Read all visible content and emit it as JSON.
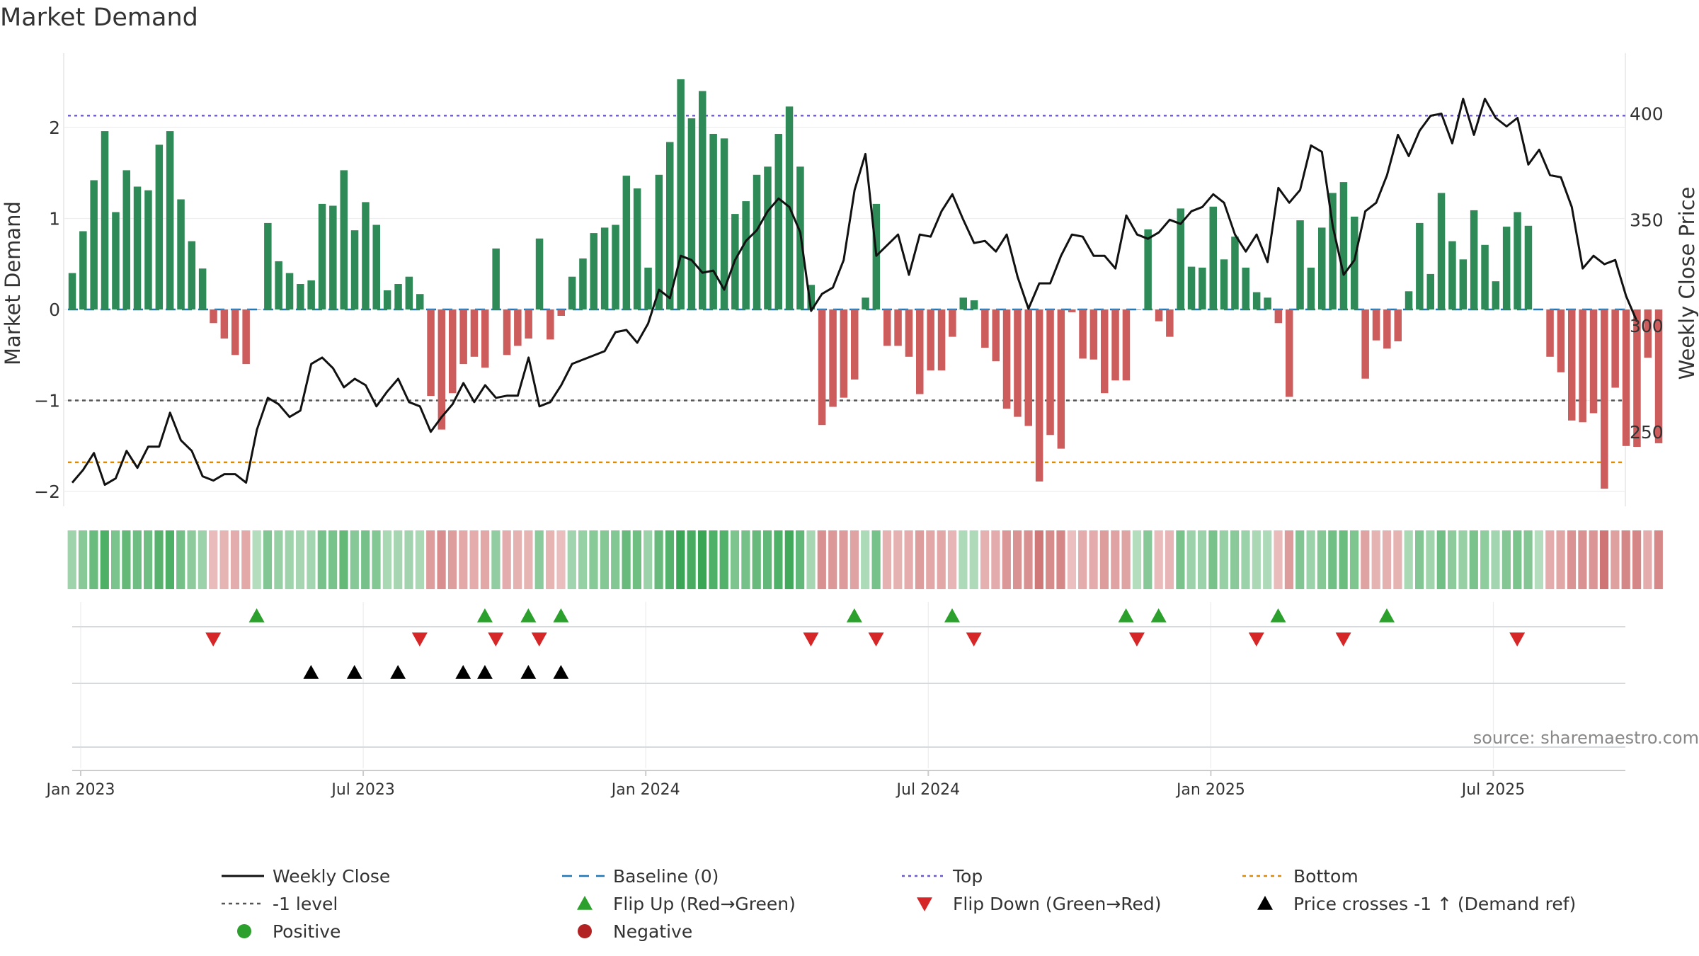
{
  "title": "Market Demand",
  "source_note": "source: sharemaestro.com",
  "axes": {
    "left_label": "Market Demand",
    "right_label": "Weekly Close Price",
    "left_ticks": [
      {
        "v": 2,
        "label": "2"
      },
      {
        "v": 1,
        "label": "1"
      },
      {
        "v": 0,
        "label": "0"
      },
      {
        "v": -1,
        "label": "−1"
      },
      {
        "v": -2,
        "label": "−2"
      }
    ],
    "right_ticks": [
      {
        "v": 400,
        "label": "400"
      },
      {
        "v": 350,
        "label": "350"
      },
      {
        "v": 300,
        "label": "300"
      },
      {
        "v": 250,
        "label": "250"
      }
    ],
    "date_ticks": [
      {
        "i": 0,
        "label": "Jan 2023"
      },
      {
        "i": 26,
        "label": "Jul 2023"
      },
      {
        "i": 52,
        "label": "Jan 2024"
      },
      {
        "i": 78,
        "label": "Jul 2024"
      },
      {
        "i": 104,
        "label": "Jan 2025"
      },
      {
        "i": 130,
        "label": "Jul 2025"
      }
    ]
  },
  "legend": [
    {
      "key": "line-black",
      "label": "Weekly Close"
    },
    {
      "key": "dash-blue",
      "label": "Baseline (0)"
    },
    {
      "key": "dot-purple",
      "label": "Top"
    },
    {
      "key": "dot-orange",
      "label": "Bottom"
    },
    {
      "key": "dot-gray",
      "label": "-1 level"
    },
    {
      "key": "tri-up-green",
      "label": "Flip Up (Red→Green)"
    },
    {
      "key": "tri-down-red",
      "label": "Flip Down (Green→Red)"
    },
    {
      "key": "tri-up-black",
      "label": "Price crosses -1 ↑ (Demand ref)"
    },
    {
      "key": "dot-green",
      "label": "Positive"
    },
    {
      "key": "dot-red",
      "label": "Negative"
    }
  ],
  "colors": {
    "positive_bar": "#2e8b57",
    "negative_bar": "#cd5c5c",
    "price_line": "#111111",
    "baseline": "#1f77b4",
    "top_line": "#6a5acd",
    "bottom_line": "#e08a00",
    "minus1_line": "#555555",
    "flip_up": "#2ca02c",
    "flip_down": "#d62728",
    "cross_marker": "#000000",
    "positive_dot": "#2ca02c",
    "negative_dot": "#b22222"
  },
  "chart_data": {
    "type": "bar",
    "x_start": "2023-01-02",
    "x_step": "weekly",
    "left_ylim": [
      -2.2,
      2.7
    ],
    "right_ylim": [
      210,
      420
    ],
    "reference_lines": {
      "baseline": 0,
      "top": 2.13,
      "minus_one": -1,
      "bottom": -1.68
    },
    "series": [
      {
        "name": "Market Demand",
        "axis": "left",
        "values": [
          0.4,
          0.86,
          1.42,
          1.96,
          1.07,
          1.53,
          1.35,
          1.31,
          1.81,
          1.96,
          1.21,
          0.75,
          0.45,
          -0.15,
          -0.32,
          -0.5,
          -0.6,
          0,
          0.95,
          0.53,
          0.4,
          0.28,
          0.32,
          1.16,
          1.14,
          1.53,
          0.87,
          1.18,
          0.93,
          0.21,
          0.28,
          0.36,
          0.17,
          -0.95,
          -1.32,
          -0.92,
          -0.6,
          -0.52,
          -0.64,
          0.67,
          -0.5,
          -0.4,
          -0.32,
          0.78,
          -0.33,
          -0.07,
          0.36,
          0.56,
          0.84,
          0.9,
          0.93,
          1.47,
          1.33,
          0.46,
          1.48,
          1.84,
          2.53,
          2.1,
          2.4,
          1.93,
          1.88,
          1.05,
          1.19,
          1.48,
          1.57,
          1.93,
          2.23,
          1.57,
          0.27,
          -1.27,
          -1.07,
          -0.97,
          -0.77,
          0.13,
          1.16,
          -0.4,
          -0.4,
          -0.52,
          -0.93,
          -0.67,
          -0.67,
          -0.3,
          0.13,
          0.1,
          -0.42,
          -0.57,
          -1.09,
          -1.18,
          -1.28,
          -1.89,
          -1.38,
          -1.53,
          -0.03,
          -0.54,
          -0.55,
          -0.92,
          -0.78,
          -0.78,
          0,
          0.88,
          -0.13,
          -0.3,
          1.11,
          0.47,
          0.46,
          1.13,
          0.55,
          0.8,
          0.46,
          0.19,
          0.13,
          -0.15,
          -0.96,
          0.98,
          0.46,
          0.9,
          1.28,
          1.4,
          1.02,
          -0.76,
          -0.34,
          -0.43,
          -0.35,
          0.2,
          0.95,
          0.39,
          1.28,
          0.75,
          0.55,
          1.09,
          0.71,
          0.31,
          0.91,
          1.07,
          0.92,
          0,
          -0.52,
          -0.69,
          -1.22,
          -1.24,
          -1.14,
          -1.97,
          -0.86,
          -1.5,
          -1.51,
          -0.53,
          -1.47
        ]
      },
      {
        "name": "Weekly Close",
        "axis": "right",
        "values": [
          226,
          232,
          240,
          225,
          228,
          241,
          233,
          243,
          243,
          259,
          246,
          241,
          229,
          227,
          230,
          230,
          226,
          251,
          266,
          263,
          257,
          260,
          282,
          285,
          280,
          271,
          275,
          272,
          262,
          269,
          275,
          264,
          262,
          250,
          257,
          263,
          273,
          264,
          272,
          266,
          267,
          267,
          285,
          262,
          264,
          272,
          282,
          284,
          286,
          288,
          297,
          298,
          292,
          301,
          317,
          313,
          333,
          331,
          325,
          326,
          317,
          331,
          340,
          345,
          354,
          360,
          356,
          344,
          307,
          315,
          318,
          331,
          364,
          381,
          333,
          338,
          343,
          324,
          343,
          342,
          354,
          362,
          350,
          339,
          340,
          335,
          343,
          323,
          308,
          320,
          320,
          333,
          343,
          342,
          333,
          333,
          327,
          352,
          343,
          341,
          344,
          350,
          348,
          354,
          356,
          362,
          358,
          343,
          335,
          343,
          330,
          365,
          358,
          364,
          385,
          382,
          347,
          324,
          331,
          354,
          358,
          371,
          390,
          380,
          392,
          399,
          400,
          386,
          407,
          390,
          407,
          398,
          394,
          398,
          376,
          383,
          371,
          370,
          356,
          327,
          333,
          329,
          331,
          314,
          302
        ]
      }
    ],
    "heat_strip": "per-week color intensity following Market Demand sign and magnitude",
    "flip_up_weeks": [
      16,
      37,
      41,
      44,
      71,
      80,
      96,
      99,
      110,
      120
    ],
    "flip_down_weeks": [
      12,
      31,
      38,
      42,
      67,
      73,
      82,
      97,
      108,
      116,
      132
    ],
    "price_cross_weeks": [
      21,
      25,
      29,
      35,
      37,
      41,
      44
    ]
  }
}
